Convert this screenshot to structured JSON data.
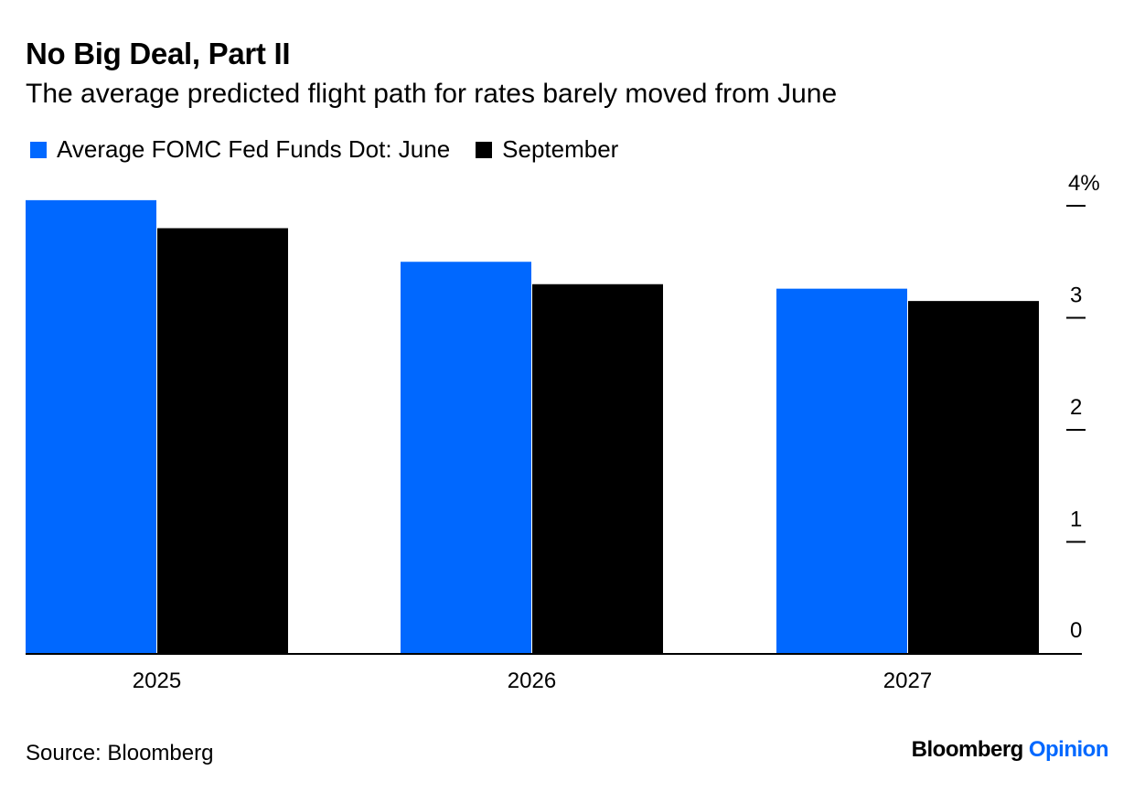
{
  "colors": {
    "june": "#0068ff",
    "september": "#000000",
    "axis": "#000000"
  },
  "header": {
    "title": "No Big Deal, Part II",
    "subtitle": "The average predicted flight path for rates barely moved from June"
  },
  "footer": {
    "source": "Source: Bloomberg",
    "brand_primary": "Bloomberg",
    "brand_secondary": "Opinion"
  },
  "chart_data": {
    "type": "bar",
    "title": "No Big Deal, Part II",
    "subtitle": "The average predicted flight path for rates barely moved from June",
    "categories": [
      "2025",
      "2026",
      "2027"
    ],
    "series": [
      {
        "name": "Average FOMC Fed Funds Dot: June",
        "values": [
          4.05,
          3.5,
          3.26
        ],
        "color": "#0068ff"
      },
      {
        "name": "September",
        "values": [
          3.8,
          3.3,
          3.15
        ],
        "color": "#000000"
      }
    ],
    "y_ticks": [
      {
        "value": 0,
        "label": "0"
      },
      {
        "value": 1,
        "label": "1"
      },
      {
        "value": 2,
        "label": "2"
      },
      {
        "value": 3,
        "label": "3"
      },
      {
        "value": 4,
        "label": "4%"
      }
    ],
    "ylim": [
      0,
      4.2
    ],
    "y_axis_side": "right",
    "grid": false,
    "legend_position": "top-left"
  }
}
